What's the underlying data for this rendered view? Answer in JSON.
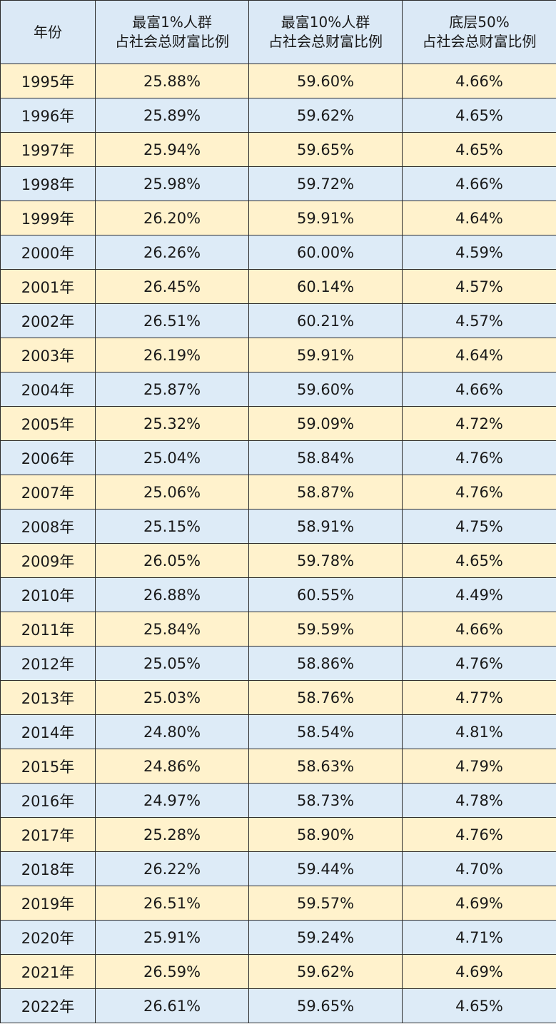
{
  "table": {
    "headers": [
      {
        "lines": [
          "年份"
        ]
      },
      {
        "lines": [
          "最富1%人群",
          "占社会总财富比例"
        ]
      },
      {
        "lines": [
          "最富10%人群",
          "占社会总财富比例"
        ]
      },
      {
        "lines": [
          "底层50%",
          "占社会总财富比例"
        ]
      }
    ],
    "rows": [
      [
        "1995年",
        "25.88%",
        "59.60%",
        "4.66%"
      ],
      [
        "1996年",
        "25.89%",
        "59.62%",
        "4.65%"
      ],
      [
        "1997年",
        "25.94%",
        "59.65%",
        "4.65%"
      ],
      [
        "1998年",
        "25.98%",
        "59.72%",
        "4.66%"
      ],
      [
        "1999年",
        "26.20%",
        "59.91%",
        "4.64%"
      ],
      [
        "2000年",
        "26.26%",
        "60.00%",
        "4.59%"
      ],
      [
        "2001年",
        "26.45%",
        "60.14%",
        "4.57%"
      ],
      [
        "2002年",
        "26.51%",
        "60.21%",
        "4.57%"
      ],
      [
        "2003年",
        "26.19%",
        "59.91%",
        "4.64%"
      ],
      [
        "2004年",
        "25.87%",
        "59.60%",
        "4.66%"
      ],
      [
        "2005年",
        "25.32%",
        "59.09%",
        "4.72%"
      ],
      [
        "2006年",
        "25.04%",
        "58.84%",
        "4.76%"
      ],
      [
        "2007年",
        "25.06%",
        "58.87%",
        "4.76%"
      ],
      [
        "2008年",
        "25.15%",
        "58.91%",
        "4.75%"
      ],
      [
        "2009年",
        "26.05%",
        "59.78%",
        "4.65%"
      ],
      [
        "2010年",
        "26.88%",
        "60.55%",
        "4.49%"
      ],
      [
        "2011年",
        "25.84%",
        "59.59%",
        "4.66%"
      ],
      [
        "2012年",
        "25.05%",
        "58.86%",
        "4.76%"
      ],
      [
        "2013年",
        "25.03%",
        "58.76%",
        "4.77%"
      ],
      [
        "2014年",
        "24.80%",
        "58.54%",
        "4.81%"
      ],
      [
        "2015年",
        "24.86%",
        "58.63%",
        "4.79%"
      ],
      [
        "2016年",
        "24.97%",
        "58.73%",
        "4.78%"
      ],
      [
        "2017年",
        "25.28%",
        "58.90%",
        "4.76%"
      ],
      [
        "2018年",
        "26.22%",
        "59.44%",
        "4.70%"
      ],
      [
        "2019年",
        "26.51%",
        "59.57%",
        "4.69%"
      ],
      [
        "2020年",
        "25.91%",
        "59.24%",
        "4.71%"
      ],
      [
        "2021年",
        "26.59%",
        "59.62%",
        "4.69%"
      ],
      [
        "2022年",
        "26.61%",
        "59.65%",
        "4.65%"
      ]
    ],
    "colors": {
      "header_bg": "#dbe9f6",
      "row_odd_bg": "#fff2cc",
      "row_even_bg": "#ddebf7",
      "border": "#2b2b2b"
    }
  }
}
